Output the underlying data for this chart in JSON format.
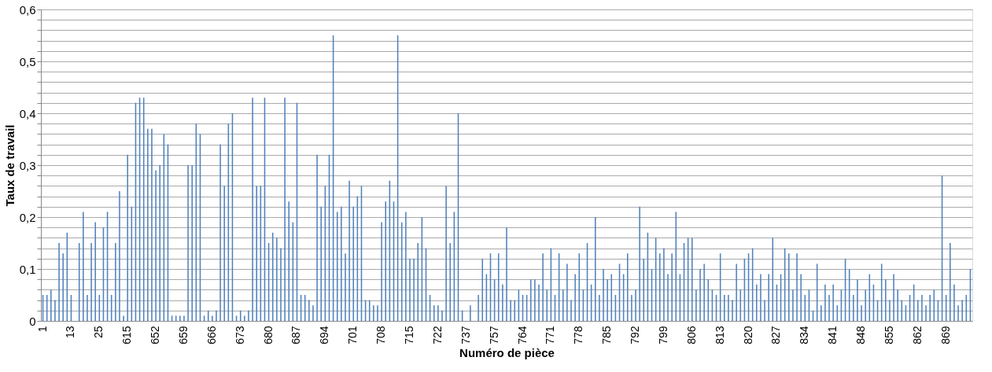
{
  "chart_data": {
    "type": "bar",
    "xlabel": "Numéro de pièce",
    "ylabel": "Taux de travail",
    "categories": [
      "1",
      null,
      null,
      null,
      null,
      null,
      null,
      "13",
      null,
      null,
      null,
      null,
      null,
      null,
      "25",
      null,
      null,
      null,
      null,
      null,
      null,
      "615",
      null,
      null,
      null,
      null,
      null,
      null,
      "652",
      null,
      null,
      null,
      null,
      null,
      null,
      "659",
      null,
      null,
      null,
      null,
      null,
      null,
      "666",
      null,
      null,
      null,
      null,
      null,
      null,
      "673",
      null,
      null,
      null,
      null,
      null,
      null,
      "680",
      null,
      null,
      null,
      null,
      null,
      null,
      "687",
      null,
      null,
      null,
      null,
      null,
      null,
      "694",
      null,
      null,
      null,
      null,
      null,
      null,
      "701",
      null,
      null,
      null,
      null,
      null,
      null,
      "708",
      null,
      null,
      null,
      null,
      null,
      null,
      "715",
      null,
      null,
      null,
      null,
      null,
      null,
      "722",
      null,
      null,
      null,
      null,
      null,
      null,
      "737",
      null,
      null,
      null,
      null,
      null,
      null,
      "757",
      null,
      null,
      null,
      null,
      null,
      null,
      "764",
      null,
      null,
      null,
      null,
      null,
      null,
      "771",
      null,
      null,
      null,
      null,
      null,
      null,
      "778",
      null,
      null,
      null,
      null,
      null,
      null,
      "785",
      null,
      null,
      null,
      null,
      null,
      null,
      "792",
      null,
      null,
      null,
      null,
      null,
      null,
      "799",
      null,
      null,
      null,
      null,
      null,
      null,
      "806",
      null,
      null,
      null,
      null,
      null,
      null,
      "813",
      null,
      null,
      null,
      null,
      null,
      null,
      "820",
      null,
      null,
      null,
      null,
      null,
      null,
      "827",
      null,
      null,
      null,
      null,
      null,
      null,
      "834",
      null,
      null,
      null,
      null,
      null,
      null,
      "841",
      null,
      null,
      null,
      null,
      null,
      null,
      "848",
      null,
      null,
      null,
      null,
      null,
      null,
      "855",
      null,
      null,
      null,
      null,
      null,
      null,
      "862",
      null,
      null,
      null,
      null,
      null,
      null,
      "869",
      null,
      null,
      null,
      null,
      null,
      null
    ],
    "values": [
      0.05,
      0.05,
      0.06,
      0.04,
      0.15,
      0.13,
      0.17,
      0.05,
      0,
      0.15,
      0.21,
      0.05,
      0.15,
      0.19,
      0.05,
      0.18,
      0.21,
      0.05,
      0.15,
      0.25,
      0.01,
      0.32,
      0.22,
      0.42,
      0.43,
      0.43,
      0.37,
      0.37,
      0.29,
      0.3,
      0.36,
      0.34,
      0.01,
      0.01,
      0.01,
      0.01,
      0.3,
      0.3,
      0.38,
      0.36,
      0.01,
      0.02,
      0.01,
      0.02,
      0.34,
      0.26,
      0.38,
      0.4,
      0.01,
      0.02,
      0.01,
      0.02,
      0.43,
      0.26,
      0.26,
      0.43,
      0.15,
      0.17,
      0.16,
      0.14,
      0.43,
      0.23,
      0.19,
      0.42,
      0.05,
      0.05,
      0.04,
      0.03,
      0.32,
      0.22,
      0.26,
      0.32,
      0.55,
      0.21,
      0.22,
      0.13,
      0.27,
      0.22,
      0.24,
      0.26,
      0.04,
      0.04,
      0.03,
      0.03,
      0.19,
      0.23,
      0.27,
      0.23,
      0.55,
      0.19,
      0.21,
      0.12,
      0.12,
      0.15,
      0.2,
      0.14,
      0.05,
      0.03,
      0.03,
      0.02,
      0.26,
      0.15,
      0.21,
      0.4,
      0.02,
      0,
      0.03,
      0,
      0.05,
      0.12,
      0.09,
      0.13,
      0.08,
      0.13,
      0.07,
      0.18,
      0.04,
      0.04,
      0.06,
      0.05,
      0.05,
      0.08,
      0.08,
      0.07,
      0.13,
      0.06,
      0.14,
      0.05,
      0.13,
      0.06,
      0.11,
      0.04,
      0.09,
      0.13,
      0.06,
      0.15,
      0.07,
      0.2,
      0.05,
      0.1,
      0.08,
      0.09,
      0.05,
      0.11,
      0.09,
      0.13,
      0.05,
      0.06,
      0.22,
      0.12,
      0.17,
      0.1,
      0.16,
      0.13,
      0.14,
      0.09,
      0.13,
      0.21,
      0.09,
      0.15,
      0.16,
      0.16,
      0.06,
      0.1,
      0.11,
      0.08,
      0.06,
      0.05,
      0.13,
      0.05,
      0.05,
      0.04,
      0.11,
      0.06,
      0.12,
      0.13,
      0.14,
      0.07,
      0.09,
      0.04,
      0.09,
      0.16,
      0.07,
      0.09,
      0.14,
      0.13,
      0.06,
      0.13,
      0.09,
      0.05,
      0.06,
      0.02,
      0.11,
      0.03,
      0.07,
      0.05,
      0.07,
      0.03,
      0.06,
      0.12,
      0.1,
      0.05,
      0.08,
      0.03,
      0.06,
      0.09,
      0.07,
      0.04,
      0.11,
      0.08,
      0.04,
      0.09,
      0.06,
      0.04,
      0.03,
      0.05,
      0.07,
      0.04,
      0.05,
      0.03,
      0.05,
      0.06,
      0.04,
      0.28,
      0.05,
      0.15,
      0.07,
      0.03,
      0.04,
      0.05,
      0.1
    ],
    "color": "#4f81bd",
    "ylim": [
      0,
      0.6
    ],
    "yticks": [
      {
        "value": 0,
        "label": "0"
      },
      {
        "value": 0.02,
        "label": null
      },
      {
        "value": 0.04,
        "label": null
      },
      {
        "value": 0.06,
        "label": null
      },
      {
        "value": 0.08,
        "label": null
      },
      {
        "value": 0.1,
        "label": "0,1"
      },
      {
        "value": 0.12,
        "label": null
      },
      {
        "value": 0.14,
        "label": null
      },
      {
        "value": 0.16,
        "label": null
      },
      {
        "value": 0.18,
        "label": null
      },
      {
        "value": 0.2,
        "label": "0,2"
      },
      {
        "value": 0.22,
        "label": null
      },
      {
        "value": 0.24,
        "label": null
      },
      {
        "value": 0.26,
        "label": null
      },
      {
        "value": 0.28,
        "label": null
      },
      {
        "value": 0.3,
        "label": "0,3"
      },
      {
        "value": 0.32,
        "label": null
      },
      {
        "value": 0.34,
        "label": null
      },
      {
        "value": 0.36,
        "label": null
      },
      {
        "value": 0.38,
        "label": null
      },
      {
        "value": 0.4,
        "label": "0,4"
      },
      {
        "value": 0.42,
        "label": null
      },
      {
        "value": 0.44,
        "label": null
      },
      {
        "value": 0.46,
        "label": null
      },
      {
        "value": 0.48,
        "label": null
      },
      {
        "value": 0.5,
        "label": "0,5"
      },
      {
        "value": 0.52,
        "label": null
      },
      {
        "value": 0.54,
        "label": null
      },
      {
        "value": 0.56,
        "label": null
      },
      {
        "value": 0.58,
        "label": null
      },
      {
        "value": 0.6,
        "label": "0,6"
      }
    ],
    "grid": true
  }
}
